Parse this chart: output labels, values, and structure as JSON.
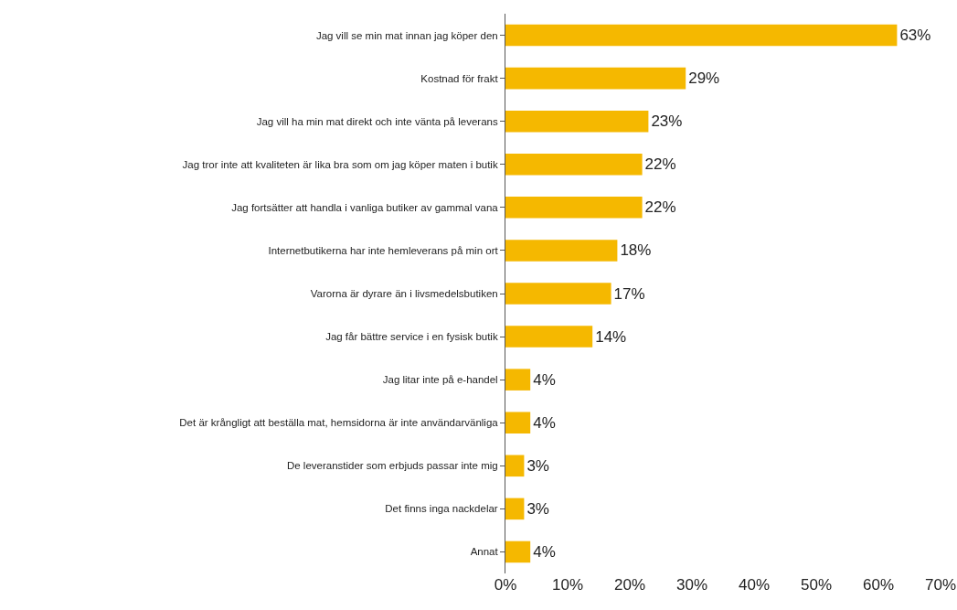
{
  "chart_data": {
    "type": "bar",
    "orientation": "horizontal",
    "categories": [
      "Jag vill se min mat innan jag köper den",
      "Kostnad för frakt",
      "Jag vill ha min mat direkt och inte vänta på leverans",
      "Jag tror inte att kvaliteten är lika bra som om jag köper maten i butik",
      "Jag fortsätter att handla i vanliga butiker av gammal vana",
      "Internetbutikerna har inte hemleverans på min ort",
      "Varorna är dyrare än i livsmedelsbutiken",
      "Jag får bättre service i en fysisk butik",
      "Jag litar inte på e-handel",
      "Det är krångligt att beställa mat, hemsidorna är inte användarvänliga",
      "De leveranstider som erbjuds passar inte mig",
      "Det finns inga nackdelar",
      "Annat"
    ],
    "values": [
      63,
      29,
      23,
      22,
      22,
      18,
      17,
      14,
      4,
      4,
      3,
      3,
      4
    ],
    "value_labels": [
      "63%",
      "29%",
      "23%",
      "22%",
      "22%",
      "18%",
      "17%",
      "14%",
      "4%",
      "4%",
      "3%",
      "3%",
      "4%"
    ],
    "color": "#f5b800",
    "xlim": [
      0,
      70
    ],
    "xticks": [
      {
        "value": 0,
        "label": "0%"
      },
      {
        "value": 10,
        "label": "10%"
      },
      {
        "value": 20,
        "label": "20%"
      },
      {
        "value": 30,
        "label": "30%"
      },
      {
        "value": 40,
        "label": "40%"
      },
      {
        "value": 50,
        "label": "50%"
      },
      {
        "value": 60,
        "label": "60%"
      },
      {
        "value": 70,
        "label": "70%"
      }
    ],
    "grid": false,
    "legend": false
  }
}
